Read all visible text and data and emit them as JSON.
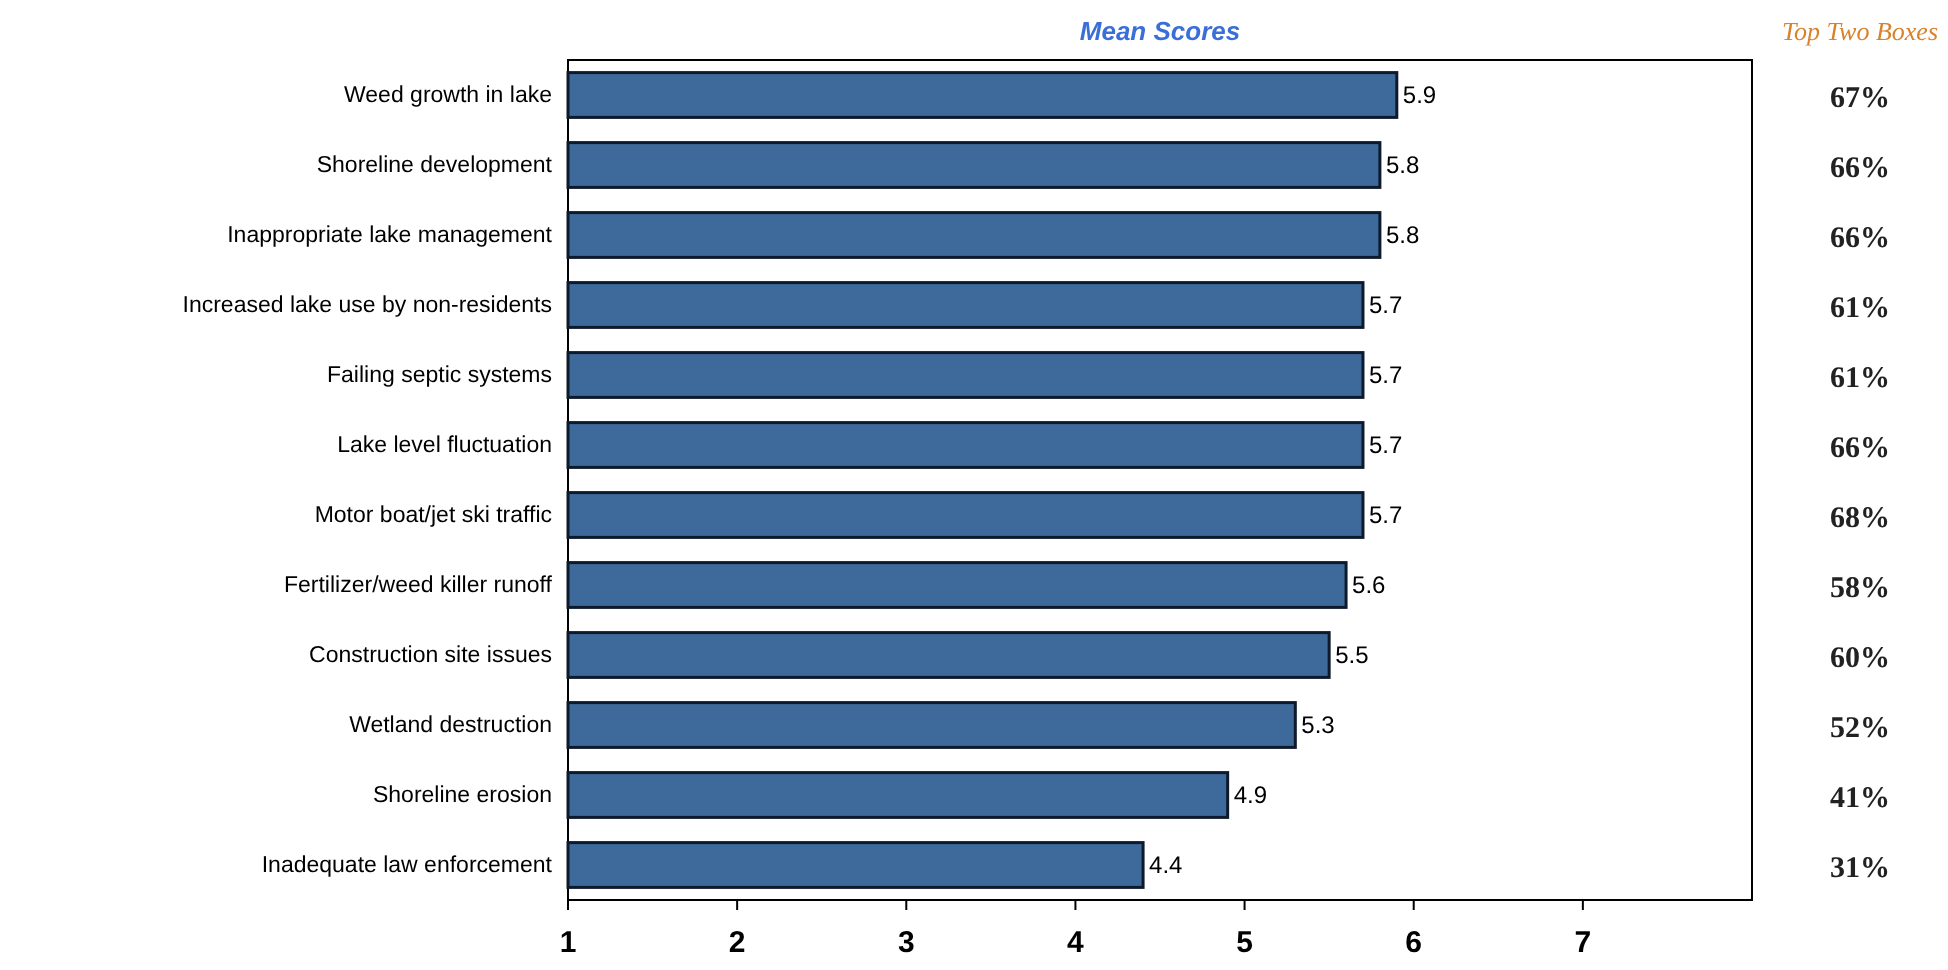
{
  "chart_data": {
    "type": "bar",
    "orientation": "horizontal",
    "title": "Mean Scores",
    "categories": [
      "Weed growth in lake",
      "Shoreline development",
      "Inappropriate lake management",
      "Increased lake use by non-residents",
      "Failing septic systems",
      "Lake level fluctuation",
      "Motor boat/jet ski traffic",
      "Fertilizer/weed killer runoff",
      "Construction site issues",
      "Wetland destruction",
      "Shoreline erosion",
      "Inadequate law enforcement"
    ],
    "values": [
      5.9,
      5.8,
      5.8,
      5.7,
      5.7,
      5.7,
      5.7,
      5.6,
      5.5,
      5.3,
      4.9,
      4.4
    ],
    "color": "#3d6a9a",
    "data_labels": true,
    "xlim": [
      1,
      8
    ],
    "xticks": [
      1,
      2,
      3,
      4,
      5,
      6,
      7
    ],
    "annotations": [
      "Top Two Boxes",
      "67%",
      "66%",
      "66%",
      "61%",
      "61%",
      "66%",
      "68%",
      "58%",
      "60%",
      "52%",
      "41%",
      "31%"
    ]
  }
}
